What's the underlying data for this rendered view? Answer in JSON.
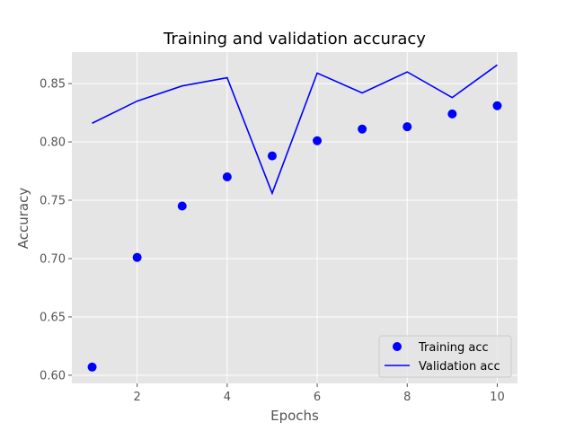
{
  "chart_data": {
    "type": "line",
    "title": "Training and validation accuracy",
    "xlabel": "Epochs",
    "ylabel": "Accuracy",
    "x": [
      1,
      2,
      3,
      4,
      5,
      6,
      7,
      8,
      9,
      10
    ],
    "xlim": [
      0.55,
      10.45
    ],
    "ylim": [
      0.593,
      0.877
    ],
    "xticks": [
      2,
      4,
      6,
      8,
      10
    ],
    "yticks": [
      0.6,
      0.65,
      0.7,
      0.75,
      0.8,
      0.85
    ],
    "ytick_labels": [
      "0.60",
      "0.65",
      "0.70",
      "0.75",
      "0.80",
      "0.85"
    ],
    "grid": true,
    "legend_position": "lower-right",
    "series": [
      {
        "name": "Training acc",
        "style": "markers",
        "color": "#0000ff",
        "values": [
          0.607,
          0.701,
          0.745,
          0.77,
          0.788,
          0.801,
          0.811,
          0.813,
          0.824,
          0.831
        ]
      },
      {
        "name": "Validation acc",
        "style": "line",
        "color": "#0000ff",
        "values": [
          0.816,
          0.835,
          0.848,
          0.855,
          0.756,
          0.859,
          0.842,
          0.86,
          0.838,
          0.866
        ]
      }
    ]
  },
  "colors": {
    "plot_background": "#e5e5e5",
    "grid": "#ffffff",
    "series": "#0000ff"
  }
}
